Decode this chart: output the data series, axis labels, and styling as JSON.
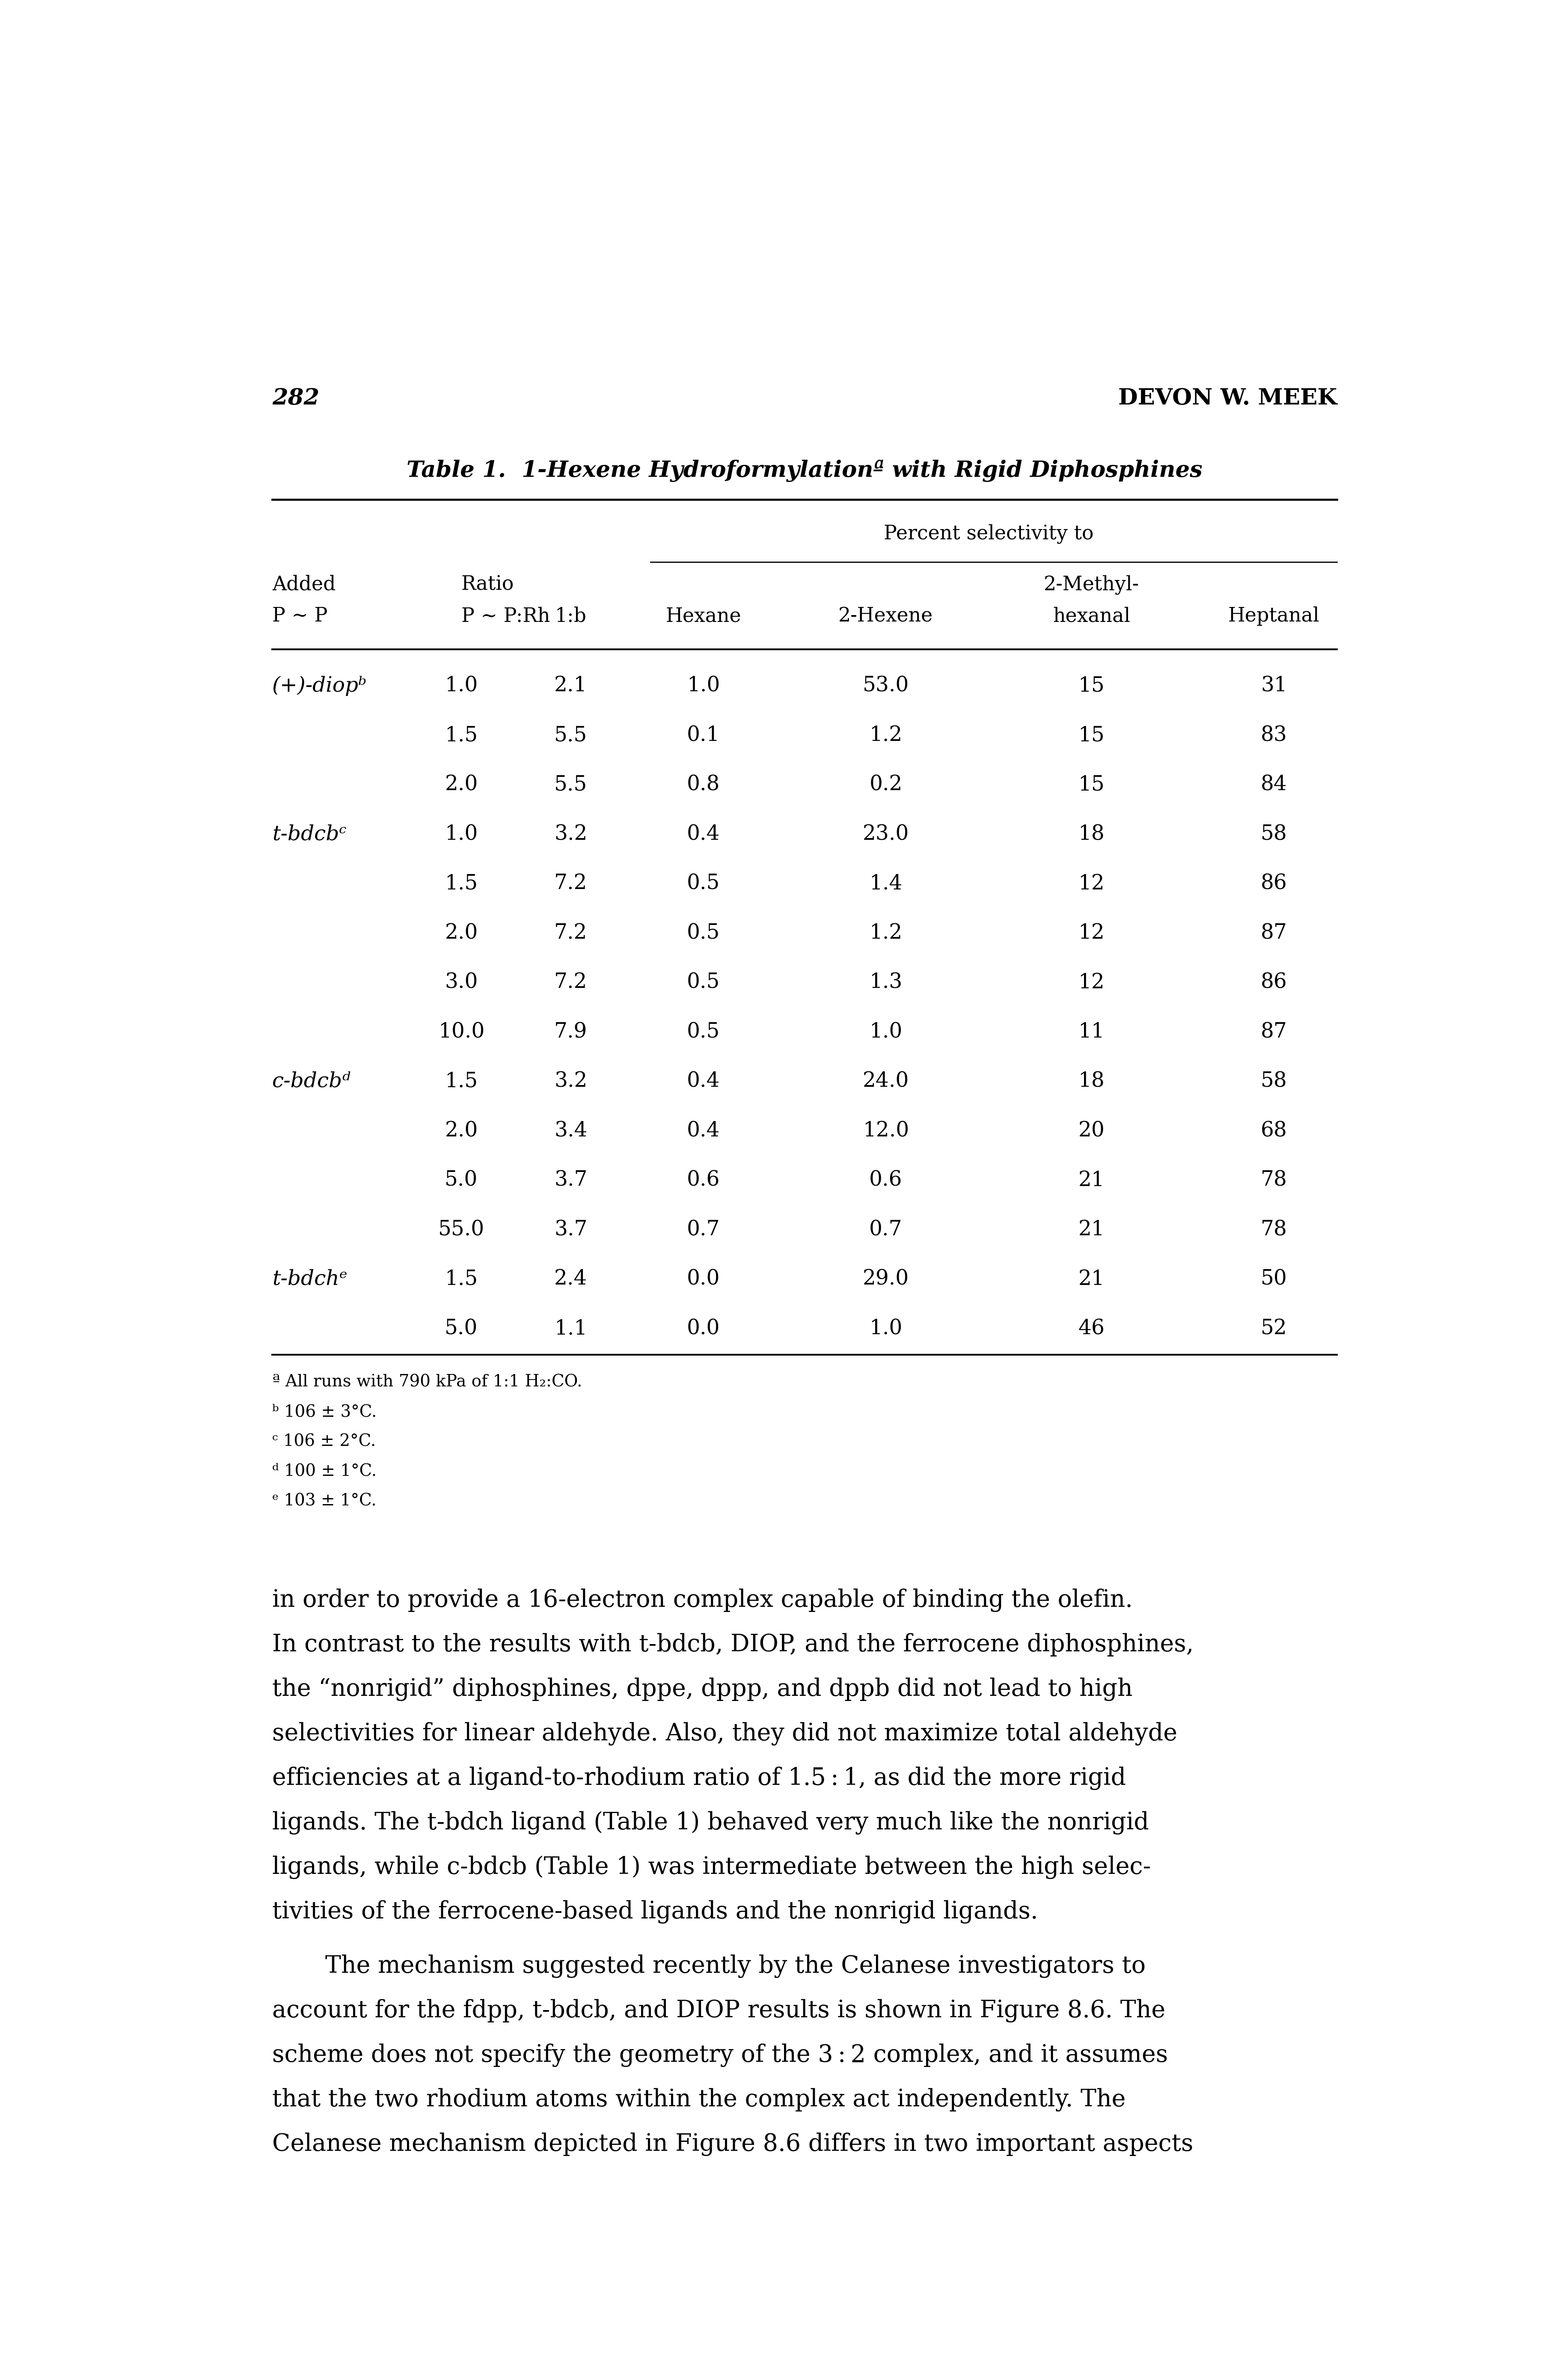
{
  "page_number": "282",
  "page_header": "DEVON W. MEEK",
  "title": "Table 1.  1-Hexene Hydroformylationª with Rigid Diphosphines",
  "rows": [
    [
      "(+)-diopᵇ",
      "1.0",
      "2.1",
      "1.0",
      "53.0",
      "15",
      "31"
    ],
    [
      "",
      "1.5",
      "5.5",
      "0.1",
      "1.2",
      "15",
      "83"
    ],
    [
      "",
      "2.0",
      "5.5",
      "0.8",
      "0.2",
      "15",
      "84"
    ],
    [
      "t-bdcbᶜ",
      "1.0",
      "3.2",
      "0.4",
      "23.0",
      "18",
      "58"
    ],
    [
      "",
      "1.5",
      "7.2",
      "0.5",
      "1.4",
      "12",
      "86"
    ],
    [
      "",
      "2.0",
      "7.2",
      "0.5",
      "1.2",
      "12",
      "87"
    ],
    [
      "",
      "3.0",
      "7.2",
      "0.5",
      "1.3",
      "12",
      "86"
    ],
    [
      "",
      "10.0",
      "7.9",
      "0.5",
      "1.0",
      "11",
      "87"
    ],
    [
      "c-bdcbᵈ",
      "1.5",
      "3.2",
      "0.4",
      "24.0",
      "18",
      "58"
    ],
    [
      "",
      "2.0",
      "3.4",
      "0.4",
      "12.0",
      "20",
      "68"
    ],
    [
      "",
      "5.0",
      "3.7",
      "0.6",
      "0.6",
      "21",
      "78"
    ],
    [
      "",
      "55.0",
      "3.7",
      "0.7",
      "0.7",
      "21",
      "78"
    ],
    [
      "t-bdchᵉ",
      "1.5",
      "2.4",
      "0.0",
      "29.0",
      "21",
      "50"
    ],
    [
      "",
      "5.0",
      "1.1",
      "0.0",
      "1.0",
      "46",
      "52"
    ]
  ],
  "footnotes": [
    "ª All runs with 790 kPa of 1:1 H₂:CO.",
    "ᵇ 106 ± 3°C.",
    "ᶜ 106 ± 2°C.",
    "ᵈ 100 ± 1°C.",
    "ᵉ 103 ± 1°C."
  ],
  "body_para1": [
    "in order to provide a 16-electron complex capable of binding the olefin.",
    "In contrast to the results with t-bdcb, DIOP, and the ferrocene diphosphines,",
    "the “nonrigid” diphosphines, dppe, dppp, and dppb did not lead to high",
    "selectivities for linear aldehyde. Also, they did not maximize total aldehyde",
    "efficiencies at a ligand-to-rhodium ratio of 1.5 : 1, as did the more rigid",
    "ligands. The t-bdch ligand (Table 1) behaved very much like the nonrigid",
    "ligands, while c-bdcb (Table 1) was intermediate between the high selec-",
    "tivities of the ferrocene-based ligands and the nonrigid ligands."
  ],
  "body_para2": [
    "    The mechanism suggested recently by the Celanese investigators to",
    "account for the fdpp, t-bdcb, and DIOP results is shown in Figure 8.6. The",
    "scheme does not specify the geometry of the 3 : 2 complex, and it assumes",
    "that the two rhodium atoms within the complex act independently. The",
    "Celanese mechanism depicted in Figure 8.6 differs in two important aspects"
  ],
  "background_color": "#ffffff",
  "text_color": "#000000"
}
